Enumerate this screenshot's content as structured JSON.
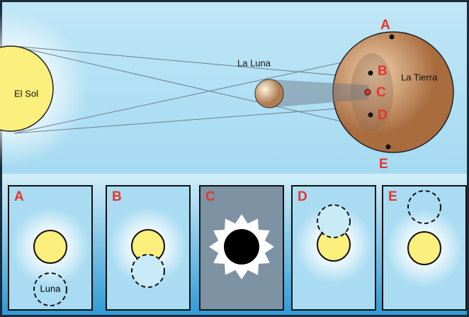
{
  "labels": {
    "sun": "El Sol",
    "moon": "La Luna",
    "earth": "La Tierra"
  },
  "points": [
    "A",
    "B",
    "C",
    "D",
    "E"
  ],
  "panels": [
    {
      "label": "A"
    },
    {
      "label": "B"
    },
    {
      "label": "C"
    },
    {
      "label": "D"
    },
    {
      "label": "E"
    }
  ],
  "panel_moon_label": "Luna"
}
